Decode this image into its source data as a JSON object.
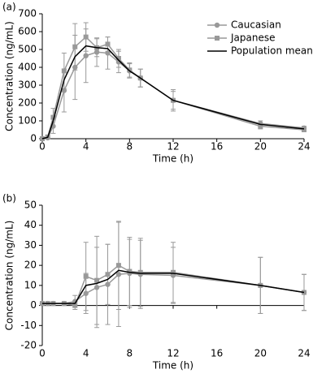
{
  "chart_data": [
    {
      "type": "line",
      "label": "(a)",
      "xlabel": "Time (h)",
      "ylabel": "Concentration (ng/mL)",
      "x": [
        0,
        0.5,
        1,
        2,
        3,
        4,
        5,
        6,
        7,
        8,
        9,
        12,
        20,
        24
      ],
      "xlim": [
        0,
        24
      ],
      "xticks": [
        0,
        4,
        8,
        12,
        16,
        20,
        24
      ],
      "ylim": [
        0,
        700
      ],
      "yticks": [
        0,
        100,
        200,
        300,
        400,
        500,
        600,
        700
      ],
      "legend": true,
      "series": [
        {
          "name": "Caucasian",
          "color": "#999999",
          "marker": "circle",
          "values": [
            0,
            5,
            70,
            270,
            400,
            465,
            485,
            480,
            430,
            380,
            340,
            215,
            85,
            60
          ],
          "errors": [
            0,
            5,
            40,
            120,
            180,
            150,
            80,
            90,
            60,
            40,
            50,
            60,
            15,
            10
          ]
        },
        {
          "name": "Japanese",
          "color": "#999999",
          "marker": "square",
          "values": [
            0,
            10,
            120,
            380,
            515,
            570,
            510,
            530,
            450,
            385,
            340,
            215,
            70,
            50
          ],
          "errors": [
            0,
            10,
            50,
            100,
            130,
            80,
            50,
            40,
            50,
            40,
            50,
            50,
            15,
            10
          ]
        },
        {
          "name": "Population mean",
          "color": "#000000",
          "marker": "none",
          "values": [
            0,
            8,
            100,
            330,
            460,
            520,
            510,
            505,
            440,
            380,
            340,
            215,
            80,
            55
          ]
        }
      ]
    },
    {
      "type": "line",
      "label": "(b)",
      "xlabel": "Time (h)",
      "ylabel": "Concentration (ng/mL)",
      "x": [
        0,
        0.5,
        1,
        2,
        3,
        4,
        5,
        6,
        7,
        8,
        9,
        12,
        20,
        24
      ],
      "xlim": [
        0,
        24
      ],
      "xticks": [
        0,
        4,
        8,
        12,
        16,
        20,
        24
      ],
      "ylim": [
        -20,
        50
      ],
      "yticks": [
        -20,
        -10,
        0,
        10,
        20,
        30,
        40,
        50
      ],
      "legend": false,
      "series": [
        {
          "color": "#999999",
          "marker": "circle",
          "values": [
            1,
            1,
            1,
            1,
            2,
            6,
            9,
            10.5,
            15.5,
            16,
            15.5,
            15,
            10,
            6.5
          ],
          "errors": [
            0,
            0,
            0,
            0,
            3,
            10,
            20,
            20,
            26,
            17,
            17,
            14,
            14,
            9
          ]
        },
        {
          "color": "#999999",
          "marker": "square",
          "values": [
            1,
            1,
            1,
            1,
            0,
            14.5,
            12.5,
            15.5,
            20,
            17,
            16.5,
            16.5,
            10,
            6.5
          ],
          "errors": [
            0,
            0,
            0,
            0,
            2,
            17,
            22,
            15,
            22,
            17,
            17,
            15,
            14,
            9
          ]
        },
        {
          "color": "#000000",
          "marker": "none",
          "values": [
            1,
            1,
            1,
            1,
            1,
            10,
            11,
            13,
            17.5,
            16.5,
            16,
            16,
            10,
            6.5
          ]
        }
      ]
    }
  ]
}
